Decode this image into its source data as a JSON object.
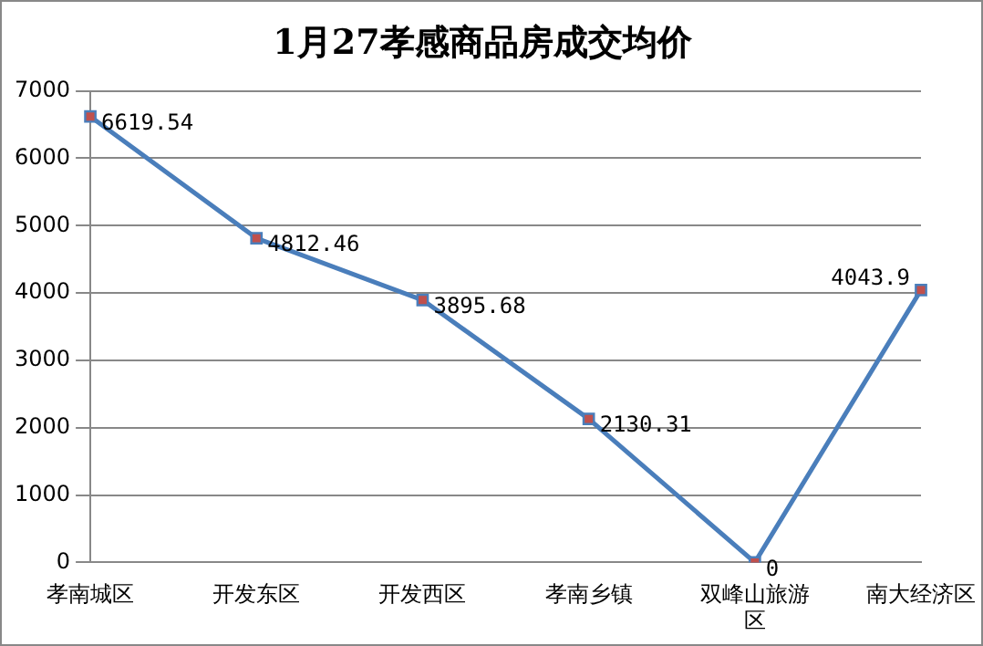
{
  "chart_data": {
    "type": "line",
    "title": "1月27孝感商品房成交均价",
    "categories": [
      "孝南城区",
      "开发东区",
      "开发西区",
      "孝南乡镇",
      "双峰山旅游区",
      "南大经济区"
    ],
    "series": [
      {
        "color": "#4a7ebb",
        "values": [
          6619.54,
          4812.46,
          3895.68,
          2130.31,
          0,
          4043.9
        ]
      }
    ],
    "ylim": [
      0,
      7000
    ],
    "yticks": [
      0,
      1000,
      2000,
      3000,
      4000,
      5000,
      6000,
      7000
    ],
    "grid": "y",
    "legend": false,
    "marker": "square",
    "line_style": "solid",
    "data_labels": true
  }
}
